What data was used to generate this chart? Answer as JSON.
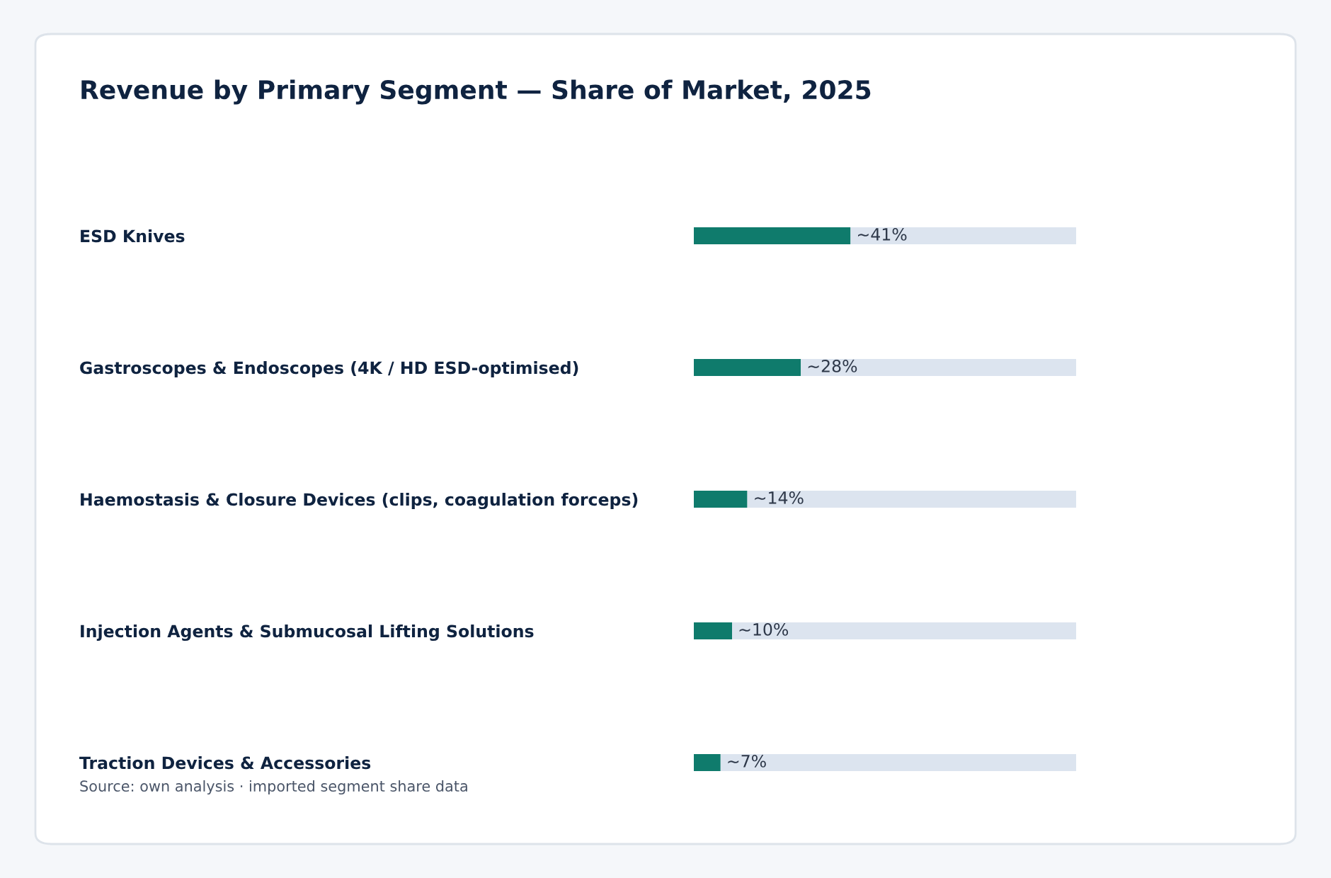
{
  "chart_data": {
    "type": "bar",
    "orientation": "horizontal",
    "stacked": true,
    "title": "Revenue by Primary Segment — Share of Market, 2025",
    "categories": [
      "ESD Knives",
      "Gastroscopes & Endoscopes (4K / HD ESD-optimised)",
      "Haemostasis & Closure Devices (clips, coagulation forceps)",
      "Injection Agents & Submucosal Lifting Solutions",
      "Traction Devices & Accessories"
    ],
    "series": [
      {
        "color": "#0f7b6c",
        "values": [
          41,
          28,
          14,
          10,
          7
        ],
        "value_labels": [
          "~41%",
          "~28%",
          "~14%",
          "~10%",
          "~7%"
        ]
      },
      {
        "color": "#dce4ef",
        "values": [
          59,
          72,
          86,
          90,
          93
        ]
      }
    ],
    "xlim": [
      0,
      100
    ],
    "tick_labels": "y",
    "grid": false,
    "legend": false,
    "annotations": [
      "Source: own analysis · imported segment share data"
    ]
  }
}
